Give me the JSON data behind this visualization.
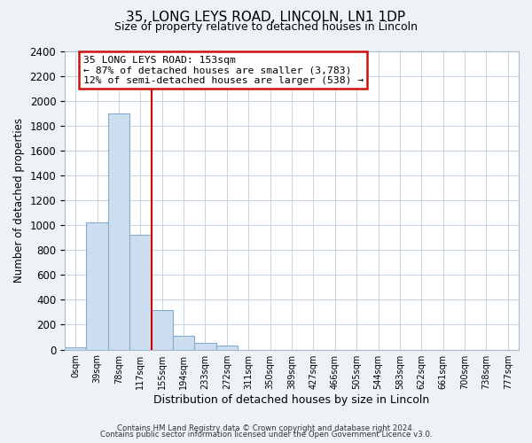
{
  "title_line1": "35, LONG LEYS ROAD, LINCOLN, LN1 1DP",
  "title_line2": "Size of property relative to detached houses in Lincoln",
  "xlabel": "Distribution of detached houses by size in Lincoln",
  "ylabel": "Number of detached properties",
  "bar_labels": [
    "0sqm",
    "39sqm",
    "78sqm",
    "117sqm",
    "155sqm",
    "194sqm",
    "233sqm",
    "272sqm",
    "311sqm",
    "350sqm",
    "389sqm",
    "427sqm",
    "466sqm",
    "505sqm",
    "544sqm",
    "583sqm",
    "622sqm",
    "661sqm",
    "700sqm",
    "738sqm",
    "777sqm"
  ],
  "bar_values": [
    20,
    1020,
    1900,
    920,
    320,
    110,
    55,
    30,
    0,
    0,
    0,
    0,
    0,
    0,
    0,
    0,
    0,
    0,
    0,
    0,
    0
  ],
  "bar_color": "#ccddef",
  "bar_edge_color": "#88aacc",
  "vline_color": "#cc0000",
  "ylim": [
    0,
    2400
  ],
  "yticks": [
    0,
    200,
    400,
    600,
    800,
    1000,
    1200,
    1400,
    1600,
    1800,
    2000,
    2200,
    2400
  ],
  "annotation_title": "35 LONG LEYS ROAD: 153sqm",
  "annotation_line2": "← 87% of detached houses are smaller (3,783)",
  "annotation_line3": "12% of semi-detached houses are larger (538) →",
  "footer_line1": "Contains HM Land Registry data © Crown copyright and database right 2024.",
  "footer_line2": "Contains public sector information licensed under the Open Government Licence v3.0.",
  "background_color": "#eef2f7",
  "plot_background": "#ffffff",
  "grid_color": "#c5d5e5"
}
